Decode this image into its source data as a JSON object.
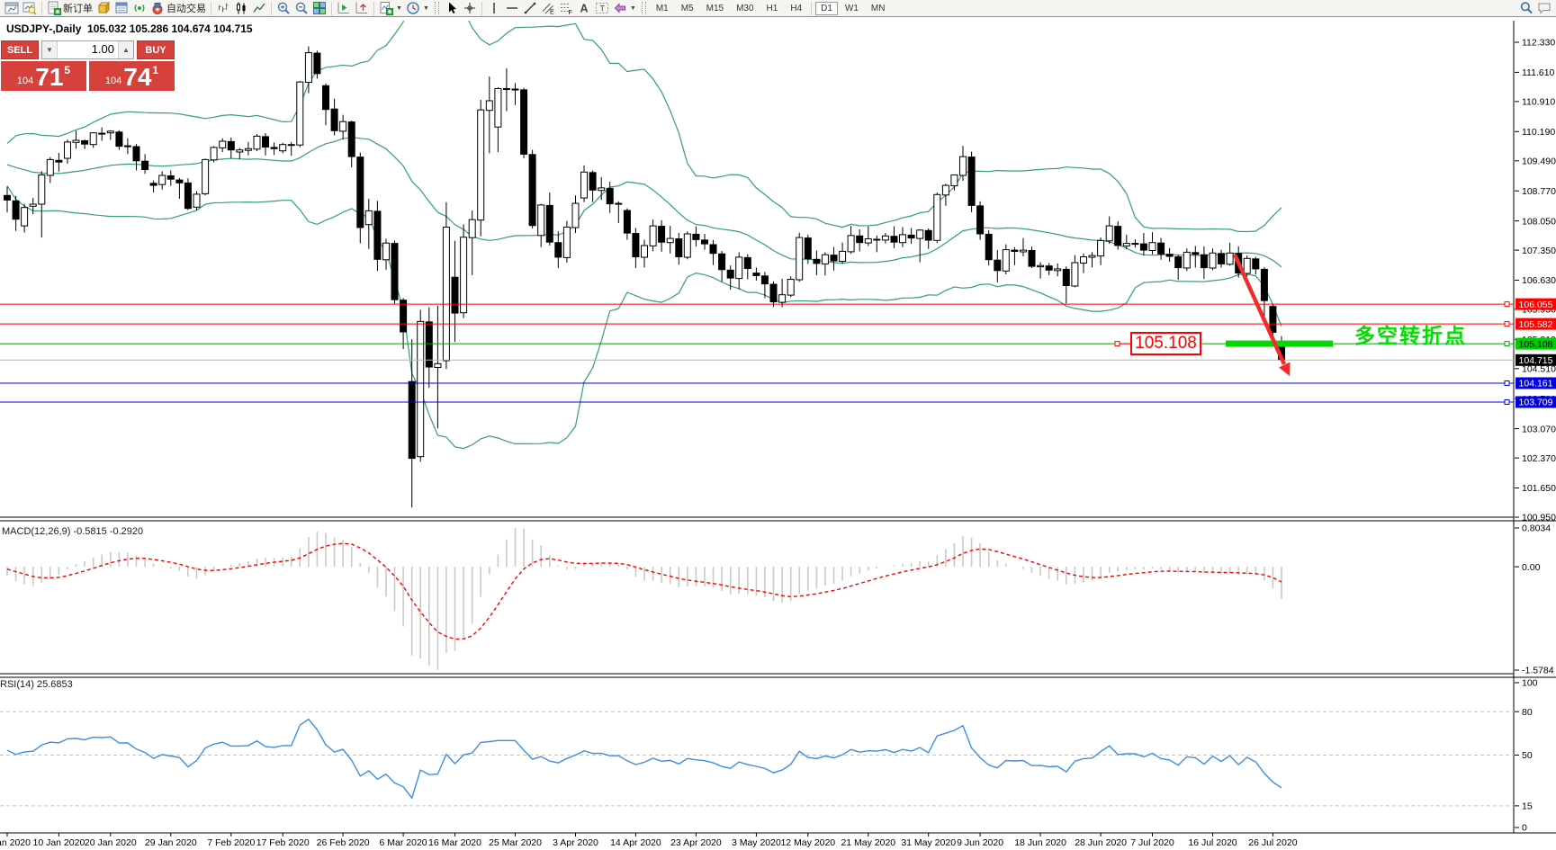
{
  "window": {
    "title": "USDJPY-,Daily  105.032 105.286 104.674 104.715"
  },
  "toolbar": {
    "groups": [
      {
        "items": [
          {
            "icon": "chart-window-icon"
          },
          {
            "icon": "chart-preview-icon"
          }
        ]
      },
      {
        "items": [
          {
            "icon": "new-order-icon",
            "label": "新订单",
            "name": "new-order-button"
          },
          {
            "icon": "market-watch-icon"
          },
          {
            "icon": "data-window-icon"
          },
          {
            "icon": "signal-icon"
          },
          {
            "icon": "auto-trading-icon",
            "label": "自动交易",
            "name": "auto-trading-button"
          }
        ]
      },
      {
        "items": [
          {
            "icon": "bar-chart-icon"
          },
          {
            "icon": "candlestick-chart-icon"
          },
          {
            "icon": "line-chart-icon"
          }
        ]
      },
      {
        "items": [
          {
            "icon": "zoom-in-icon"
          },
          {
            "icon": "zoom-out-icon"
          },
          {
            "icon": "tile-windows-icon"
          }
        ]
      },
      {
        "items": [
          {
            "icon": "chart-autoscroll-icon"
          },
          {
            "icon": "chart-shift-icon"
          }
        ]
      },
      {
        "items": [
          {
            "icon": "indicators-menu-icon",
            "dropdown": true
          },
          {
            "icon": "timeframes-menu-icon",
            "dropdown": true
          }
        ]
      },
      {
        "handle": true,
        "items": [
          {
            "icon": "cursor-icon"
          },
          {
            "icon": "crosshair-icon"
          }
        ]
      },
      {
        "items": [
          {
            "icon": "vertical-line-icon"
          },
          {
            "icon": "horizontal-line-icon"
          },
          {
            "icon": "trendline-icon"
          },
          {
            "icon": "equidistant-channel-icon"
          },
          {
            "icon": "fibonacci-icon"
          },
          {
            "icon": "text-icon"
          },
          {
            "icon": "text-label-icon"
          },
          {
            "icon": "shapes-icon",
            "dropdown": true
          }
        ]
      },
      {
        "handle": true,
        "timeframes": true
      }
    ],
    "timeframes": {
      "labels": [
        "M1",
        "M5",
        "M15",
        "M30",
        "H1",
        "H4",
        "D1",
        "W1",
        "MN"
      ],
      "active": "D1"
    },
    "right_items": [
      {
        "icon": "search-icon"
      },
      {
        "icon": "chat-icon"
      }
    ]
  },
  "trade_panel": {
    "sell_label": "SELL",
    "buy_label": "BUY",
    "volume": "1.00",
    "sell_prefix": "104",
    "sell_big": "71",
    "sell_sup": "5",
    "buy_prefix": "104",
    "buy_big": "74",
    "buy_sup": "1"
  },
  "price_axis": {
    "ticks": [
      "112.330",
      "111.610",
      "110.910",
      "110.190",
      "109.490",
      "108.770",
      "108.050",
      "107.350",
      "106.630",
      "105.930",
      "105.210",
      "104.510",
      "103.790",
      "103.070",
      "102.370",
      "101.650",
      "100.950"
    ],
    "tags": [
      {
        "label": "106.055",
        "price": 106.055,
        "bg": "#ff0000",
        "fg": "#ffffff"
      },
      {
        "label": "105.582",
        "price": 105.582,
        "bg": "#ff0000",
        "fg": "#ffffff"
      },
      {
        "label": "105.108",
        "price": 105.108,
        "bg": "#00cc00",
        "fg": "#000000"
      },
      {
        "label": "104.715",
        "price": 104.715,
        "bg": "#000000",
        "fg": "#ffffff"
      },
      {
        "label": "104.161",
        "price": 104.161,
        "bg": "#0000e6",
        "fg": "#ffffff"
      },
      {
        "label": "103.709",
        "price": 103.709,
        "bg": "#0000e6",
        "fg": "#ffffff"
      }
    ]
  },
  "levels": [
    {
      "price": 106.055,
      "color": "#ff0000"
    },
    {
      "price": 105.582,
      "color": "#ff0000"
    },
    {
      "price": 105.108,
      "color": "#00a000"
    },
    {
      "price": 104.161,
      "color": "#0000e6"
    },
    {
      "price": 103.709,
      "color": "#0000e6"
    }
  ],
  "current_price_line": {
    "price": 104.715,
    "color": "#b3b3b3"
  },
  "annotations": {
    "price_box": "105.108",
    "turning_point": "多空转折点"
  },
  "indicators": {
    "macd": {
      "label": "MACD(12,26,9) -0.5815 -0.2920",
      "axis": [
        "0.8034",
        "0.00",
        "-1.5784"
      ]
    },
    "rsi": {
      "label": "RSI(14) 25.6853",
      "axis": [
        "100",
        "80",
        "50",
        "15",
        "0"
      ],
      "levels": [
        80,
        50,
        15
      ]
    }
  },
  "colors": {
    "bb_green": "#35a06a",
    "hist_silver": "#c9c9c9",
    "macd_signal_red": "#ff0000",
    "rsi_blue": "#3f8ede",
    "marker_green": "#00d800",
    "arrow_red": "#ef2d2d",
    "accent_red": "#d6423b",
    "dashed_level_gray": "#c4c4c4"
  },
  "chart_data": {
    "type": "candlestick",
    "symbol": "USDJPY-",
    "timeframe": "Daily",
    "title": "USDJPY-,Daily",
    "current_bar": {
      "open": 105.032,
      "high": 105.286,
      "low": 104.674,
      "close": 104.715
    },
    "overlays": {
      "bollinger": {
        "period": 20,
        "deviation": 2
      },
      "macd": {
        "fast": 12,
        "slow": 26,
        "signal": 9
      },
      "rsi": {
        "period": 14
      }
    },
    "ohlc": [
      [
        108.66,
        108.87,
        108.25,
        108.55
      ],
      [
        108.53,
        108.65,
        107.81,
        108.09
      ],
      [
        107.93,
        108.46,
        107.77,
        108.37
      ],
      [
        108.4,
        108.6,
        108.21,
        108.45
      ],
      [
        108.45,
        109.24,
        107.65,
        109.15
      ],
      [
        109.14,
        109.58,
        108.96,
        109.52
      ],
      [
        109.5,
        109.68,
        109.23,
        109.46
      ],
      [
        109.55,
        110.0,
        109.42,
        109.94
      ],
      [
        109.93,
        110.21,
        109.78,
        109.98
      ],
      [
        109.97,
        110.0,
        109.77,
        109.89
      ],
      [
        109.88,
        110.17,
        109.8,
        110.16
      ],
      [
        110.15,
        110.29,
        109.97,
        110.14
      ],
      [
        110.16,
        110.22,
        109.99,
        110.2
      ],
      [
        110.18,
        110.22,
        109.75,
        109.84
      ],
      [
        109.85,
        110.03,
        109.65,
        109.85
      ],
      [
        109.83,
        109.89,
        109.26,
        109.49
      ],
      [
        109.48,
        109.65,
        109.18,
        109.28
      ],
      [
        108.95,
        109.02,
        108.73,
        108.9
      ],
      [
        108.92,
        109.24,
        108.8,
        109.14
      ],
      [
        109.13,
        109.26,
        108.89,
        109.05
      ],
      [
        109.03,
        109.08,
        108.58,
        108.96
      ],
      [
        108.96,
        109.07,
        108.31,
        108.35
      ],
      [
        108.38,
        108.76,
        108.3,
        108.69
      ],
      [
        108.7,
        109.54,
        108.66,
        109.52
      ],
      [
        109.51,
        109.84,
        109.45,
        109.81
      ],
      [
        109.8,
        110.03,
        109.7,
        109.96
      ],
      [
        109.95,
        110.05,
        109.55,
        109.75
      ],
      [
        109.7,
        109.8,
        109.53,
        109.75
      ],
      [
        109.74,
        109.94,
        109.62,
        109.78
      ],
      [
        109.77,
        110.13,
        109.72,
        110.08
      ],
      [
        110.07,
        110.15,
        109.62,
        109.82
      ],
      [
        109.81,
        109.93,
        109.63,
        109.78
      ],
      [
        109.73,
        109.92,
        109.67,
        109.88
      ],
      [
        109.87,
        109.94,
        109.61,
        109.88
      ],
      [
        109.87,
        111.4,
        109.82,
        111.38
      ],
      [
        111.37,
        112.23,
        111.11,
        112.08
      ],
      [
        112.07,
        112.13,
        111.46,
        111.58
      ],
      [
        111.29,
        111.34,
        110.34,
        110.72
      ],
      [
        110.73,
        110.98,
        110.1,
        110.21
      ],
      [
        110.2,
        110.59,
        110.0,
        110.43
      ],
      [
        110.42,
        110.45,
        109.33,
        109.59
      ],
      [
        109.58,
        109.69,
        107.51,
        107.89
      ],
      [
        107.96,
        108.58,
        107.38,
        108.29
      ],
      [
        108.28,
        108.53,
        106.85,
        107.13
      ],
      [
        107.12,
        107.62,
        106.88,
        107.52
      ],
      [
        107.51,
        107.58,
        106.05,
        106.16
      ],
      [
        106.15,
        106.2,
        104.98,
        105.39
      ],
      [
        104.2,
        105.21,
        101.18,
        102.36
      ],
      [
        102.4,
        105.92,
        102.28,
        105.64
      ],
      [
        105.63,
        105.98,
        104.05,
        104.55
      ],
      [
        104.54,
        106.02,
        103.08,
        104.63
      ],
      [
        104.7,
        108.5,
        104.5,
        107.9
      ],
      [
        106.7,
        107.57,
        105.15,
        105.84
      ],
      [
        105.85,
        107.97,
        105.72,
        107.66
      ],
      [
        107.65,
        108.3,
        106.75,
        108.08
      ],
      [
        108.07,
        110.95,
        107.68,
        110.71
      ],
      [
        110.7,
        111.51,
        109.67,
        110.93
      ],
      [
        110.3,
        111.25,
        109.7,
        111.22
      ],
      [
        111.21,
        111.71,
        110.68,
        111.22
      ],
      [
        111.21,
        111.35,
        110.83,
        111.2
      ],
      [
        111.19,
        111.24,
        109.55,
        109.65
      ],
      [
        109.64,
        109.75,
        107.87,
        107.94
      ],
      [
        107.7,
        108.46,
        107.42,
        108.43
      ],
      [
        108.42,
        108.73,
        107.46,
        107.54
      ],
      [
        107.53,
        107.8,
        106.92,
        107.18
      ],
      [
        107.17,
        108.05,
        107.05,
        107.9
      ],
      [
        107.89,
        108.66,
        107.76,
        108.47
      ],
      [
        108.6,
        109.38,
        108.5,
        109.22
      ],
      [
        109.21,
        109.26,
        108.5,
        108.79
      ],
      [
        108.78,
        109.1,
        108.55,
        108.84
      ],
      [
        108.83,
        108.99,
        108.24,
        108.46
      ],
      [
        108.45,
        108.52,
        108.0,
        108.47
      ],
      [
        108.3,
        108.35,
        107.6,
        107.76
      ],
      [
        107.75,
        107.88,
        106.92,
        107.19
      ],
      [
        107.18,
        107.6,
        106.93,
        107.46
      ],
      [
        107.45,
        108.08,
        107.32,
        107.93
      ],
      [
        107.92,
        108.07,
        107.31,
        107.54
      ],
      [
        107.53,
        107.93,
        107.27,
        107.63
      ],
      [
        107.62,
        107.76,
        107.0,
        107.19
      ],
      [
        107.18,
        107.8,
        107.13,
        107.74
      ],
      [
        107.73,
        107.92,
        107.43,
        107.6
      ],
      [
        107.59,
        107.74,
        107.36,
        107.5
      ],
      [
        107.48,
        107.59,
        106.99,
        107.27
      ],
      [
        107.26,
        107.33,
        106.59,
        106.88
      ],
      [
        106.87,
        106.98,
        106.4,
        106.68
      ],
      [
        106.67,
        107.3,
        106.41,
        107.18
      ],
      [
        107.17,
        107.25,
        106.65,
        106.91
      ],
      [
        106.8,
        106.93,
        106.62,
        106.74
      ],
      [
        106.73,
        106.83,
        106.2,
        106.54
      ],
      [
        106.53,
        106.6,
        105.99,
        106.11
      ],
      [
        106.1,
        106.66,
        105.98,
        106.28
      ],
      [
        106.27,
        106.72,
        106.22,
        106.65
      ],
      [
        106.64,
        107.77,
        106.59,
        107.65
      ],
      [
        107.64,
        107.72,
        107.02,
        107.14
      ],
      [
        107.13,
        107.34,
        106.75,
        107.03
      ],
      [
        107.02,
        107.3,
        106.74,
        107.24
      ],
      [
        107.23,
        107.42,
        106.86,
        107.09
      ],
      [
        107.08,
        107.53,
        107.02,
        107.32
      ],
      [
        107.31,
        107.93,
        107.26,
        107.7
      ],
      [
        107.69,
        107.85,
        107.32,
        107.53
      ],
      [
        107.52,
        107.92,
        107.45,
        107.62
      ],
      [
        107.61,
        107.7,
        107.3,
        107.6
      ],
      [
        107.59,
        107.76,
        107.51,
        107.69
      ],
      [
        107.68,
        107.92,
        107.4,
        107.54
      ],
      [
        107.53,
        107.9,
        107.42,
        107.72
      ],
      [
        107.71,
        107.88,
        107.5,
        107.64
      ],
      [
        107.63,
        107.85,
        107.06,
        107.83
      ],
      [
        107.82,
        107.87,
        107.38,
        107.59
      ],
      [
        107.58,
        108.73,
        107.52,
        108.68
      ],
      [
        108.67,
        108.94,
        108.41,
        108.9
      ],
      [
        108.89,
        109.16,
        108.78,
        109.15
      ],
      [
        109.14,
        109.85,
        109.01,
        109.59
      ],
      [
        109.58,
        109.71,
        108.26,
        108.42
      ],
      [
        108.41,
        108.52,
        107.6,
        107.74
      ],
      [
        107.73,
        107.83,
        106.98,
        107.12
      ],
      [
        107.11,
        107.35,
        106.58,
        106.86
      ],
      [
        106.85,
        107.49,
        106.77,
        107.36
      ],
      [
        107.35,
        107.42,
        106.99,
        107.32
      ],
      [
        107.31,
        107.64,
        107.2,
        107.35
      ],
      [
        107.34,
        107.43,
        106.92,
        106.96
      ],
      [
        106.95,
        107.06,
        106.67,
        106.98
      ],
      [
        106.97,
        107.04,
        106.75,
        106.87
      ],
      [
        106.86,
        107.03,
        106.72,
        106.9
      ],
      [
        106.89,
        106.96,
        106.07,
        106.5
      ],
      [
        106.49,
        107.23,
        106.46,
        107.05
      ],
      [
        107.04,
        107.27,
        106.8,
        107.19
      ],
      [
        107.18,
        107.3,
        106.94,
        107.22
      ],
      [
        107.21,
        107.65,
        106.99,
        107.58
      ],
      [
        107.57,
        108.16,
        107.5,
        107.93
      ],
      [
        107.92,
        108.04,
        107.36,
        107.46
      ],
      [
        107.45,
        107.72,
        107.37,
        107.51
      ],
      [
        107.5,
        107.61,
        107.41,
        107.51
      ],
      [
        107.5,
        107.76,
        107.22,
        107.35
      ],
      [
        107.34,
        107.78,
        107.25,
        107.53
      ],
      [
        107.52,
        107.64,
        107.12,
        107.26
      ],
      [
        107.25,
        107.4,
        107.07,
        107.2
      ],
      [
        107.19,
        107.24,
        106.64,
        106.93
      ],
      [
        106.92,
        107.39,
        106.85,
        107.3
      ],
      [
        107.29,
        107.45,
        106.93,
        107.25
      ],
      [
        107.24,
        107.44,
        106.66,
        106.93
      ],
      [
        106.92,
        107.39,
        106.87,
        107.28
      ],
      [
        107.27,
        107.36,
        106.93,
        107.02
      ],
      [
        107.01,
        107.53,
        106.98,
        107.28
      ],
      [
        107.27,
        107.44,
        106.69,
        106.8
      ],
      [
        106.79,
        107.22,
        106.72,
        107.15
      ],
      [
        107.14,
        107.19,
        106.77,
        106.9
      ],
      [
        106.89,
        106.94,
        105.68,
        106.14
      ],
      [
        106.0,
        106.05,
        105.12,
        105.38
      ],
      [
        105.03,
        105.29,
        104.67,
        104.72
      ]
    ],
    "date_ticks": [
      [
        0,
        "2 Jan 2020"
      ],
      [
        6,
        "10 Jan 2020"
      ],
      [
        12,
        "20 Jan 2020"
      ],
      [
        19,
        "29 Jan 2020"
      ],
      [
        26,
        "7 Feb 2020"
      ],
      [
        32,
        "17 Feb 2020"
      ],
      [
        39,
        "26 Feb 2020"
      ],
      [
        46,
        "6 Mar 2020"
      ],
      [
        52,
        "16 Mar 2020"
      ],
      [
        59,
        "25 Mar 2020"
      ],
      [
        66,
        "3 Apr 2020"
      ],
      [
        73,
        "14 Apr 2020"
      ],
      [
        80,
        "23 Apr 2020"
      ],
      [
        87,
        "3 May 2020"
      ],
      [
        93,
        "12 May 2020"
      ],
      [
        100,
        "21 May 2020"
      ],
      [
        107,
        "31 May 2020"
      ],
      [
        113,
        "9 Jun 2020"
      ],
      [
        120,
        "18 Jun 2020"
      ],
      [
        127,
        "28 Jun 2020"
      ],
      [
        133,
        "7 Jul 2020"
      ],
      [
        140,
        "16 Jul 2020"
      ],
      [
        147,
        "26 Jul 2020"
      ]
    ]
  }
}
